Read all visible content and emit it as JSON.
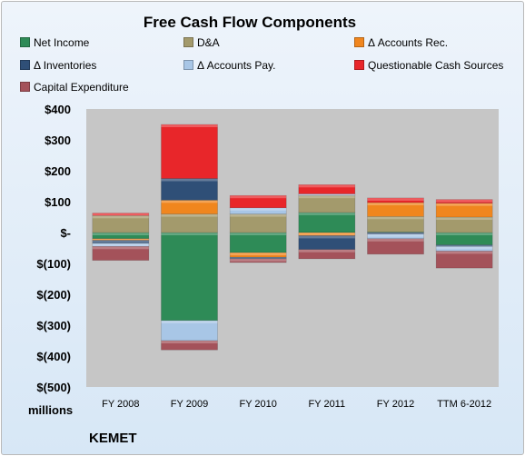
{
  "chart_data": {
    "type": "bar",
    "stacked": true,
    "title": "Free Cash Flow Components",
    "units_label": "millions",
    "company": "KEMET",
    "categories": [
      "FY 2008",
      "FY 2009",
      "FY 2010",
      "FY 2011",
      "FY 2012",
      "TTM 6-2012"
    ],
    "ylim": [
      -500,
      400
    ],
    "yticks": [
      400,
      300,
      200,
      100,
      0,
      -100,
      -200,
      -300,
      -400,
      -500
    ],
    "ytick_labels": [
      "$400",
      "$300",
      "$200",
      "$100",
      "$-",
      "$(100)",
      "$(200)",
      "$(300)",
      "$(400)",
      "$(500)"
    ],
    "grid": false,
    "legend_position": "top",
    "plot_background": "#c6c6c6",
    "series": [
      {
        "name": "Net Income",
        "color": "#2e8b57",
        "values": [
          -20,
          -285,
          -65,
          65,
          2,
          -40
        ]
      },
      {
        "name": "D&A",
        "color": "#a39a6c",
        "values": [
          55,
          60,
          60,
          55,
          50,
          50
        ]
      },
      {
        "name": "Δ Accounts Rec.",
        "color": "#f0861e",
        "values": [
          -5,
          45,
          -15,
          -10,
          45,
          45
        ]
      },
      {
        "name": "Δ Inventories",
        "color": "#2f4f77",
        "values": [
          -10,
          70,
          -5,
          -45,
          -5,
          -5
        ]
      },
      {
        "name": "Δ Accounts Pay.",
        "color": "#a8c6e6",
        "values": [
          -10,
          -65,
          20,
          5,
          -15,
          -15
        ]
      },
      {
        "name": "Questionable Cash Sources",
        "color": "#e8262a",
        "values": [
          8,
          175,
          40,
          30,
          15,
          12
        ]
      },
      {
        "name": "Capital Expenditure",
        "color": "#a4525a",
        "values": [
          -45,
          -30,
          -12,
          -30,
          -50,
          -55
        ]
      }
    ]
  }
}
